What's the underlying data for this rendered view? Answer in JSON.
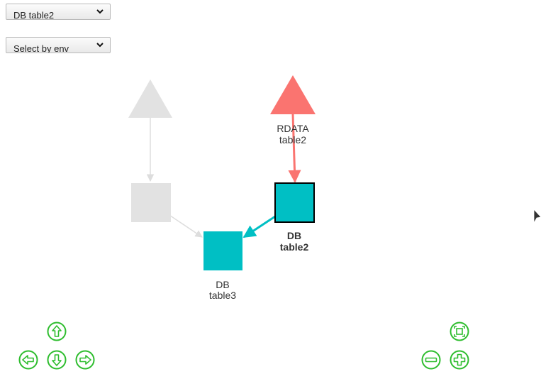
{
  "selects": {
    "table": {
      "value": "DB table2"
    },
    "env": {
      "value": "Select by env"
    }
  },
  "graph": {
    "nodes": [
      {
        "id": "ghost-source",
        "shape": "triangle",
        "color": "#e2e2e2",
        "label_lines": []
      },
      {
        "id": "rdata-table2",
        "shape": "triangle",
        "color": "#fa7470",
        "label_lines": [
          "RDATA",
          "table2"
        ]
      },
      {
        "id": "ghost-table",
        "shape": "square",
        "color": "#e2e2e2",
        "label_lines": []
      },
      {
        "id": "db-table2",
        "shape": "square",
        "color": "#00bfc4",
        "border": "#000000",
        "selected": true,
        "label_lines": [
          "DB",
          "table2"
        ]
      },
      {
        "id": "db-table3",
        "shape": "square",
        "color": "#00bfc4",
        "label_lines": [
          "DB",
          "table3"
        ]
      }
    ],
    "edges": [
      {
        "from": "ghost-source",
        "to": "ghost-table",
        "color": "#dddddd"
      },
      {
        "from": "ghost-table",
        "to": "db-table3",
        "color": "#dddddd"
      },
      {
        "from": "rdata-table2",
        "to": "db-table2",
        "color": "#fa7470"
      },
      {
        "from": "db-table2",
        "to": "db-table3",
        "color": "#00bfc4"
      }
    ]
  },
  "navigation": {
    "icon_color": "#2ebd2e",
    "buttons": [
      "up",
      "left",
      "down",
      "right",
      "fit",
      "zoom-out",
      "zoom-in"
    ]
  }
}
